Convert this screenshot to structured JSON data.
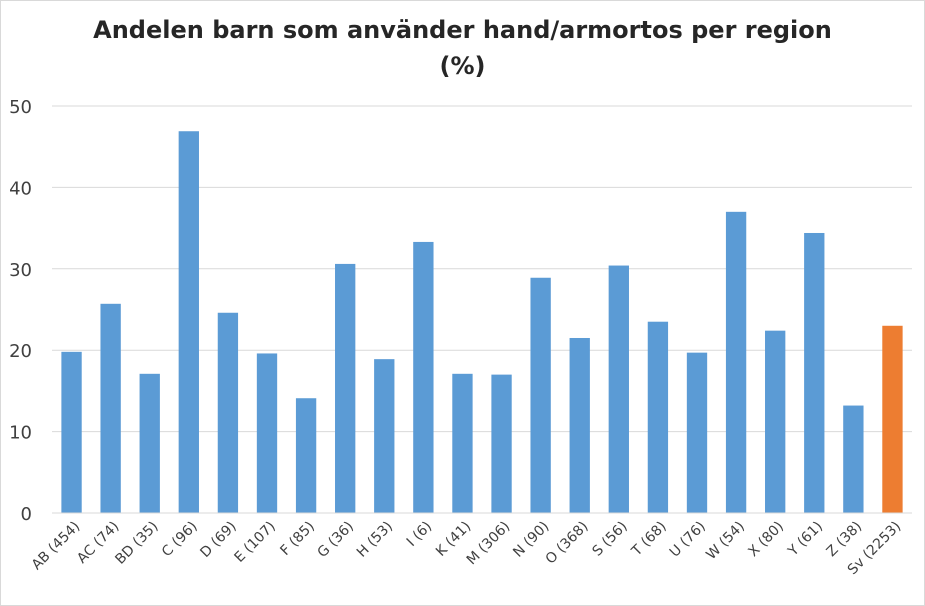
{
  "chart_data": {
    "type": "bar",
    "title_line1": "Andelen barn som använder hand/armortos  per region",
    "title_line2": "(%)",
    "xlabel": "",
    "ylabel": "",
    "ylim": [
      0,
      50
    ],
    "yticks": [
      0,
      10,
      20,
      30,
      40,
      50
    ],
    "grid": true,
    "legend": "none",
    "categories": [
      "AB (454)",
      "AC (74)",
      "BD (35)",
      "C (96)",
      "D (69)",
      "E (107)",
      "F (85)",
      "G (36)",
      "H (53)",
      "I (6)",
      "K (41)",
      "M (306)",
      "N (90)",
      "O (368)",
      "S (56)",
      "T (68)",
      "U (76)",
      "W (54)",
      "X (80)",
      "Y (61)",
      "Z (38)",
      "Sv (2253)"
    ],
    "values": [
      19.8,
      25.7,
      17.1,
      46.9,
      24.6,
      19.6,
      14.1,
      30.6,
      18.9,
      33.3,
      17.1,
      17.0,
      28.9,
      21.5,
      30.4,
      23.5,
      19.7,
      37.0,
      22.4,
      34.4,
      13.2,
      23.0
    ],
    "colors": {
      "bar": "#5b9bd5",
      "highlight": "#ed7d31",
      "highlight_category": "Sv (2253)",
      "grid": "#d9d9d9"
    }
  }
}
